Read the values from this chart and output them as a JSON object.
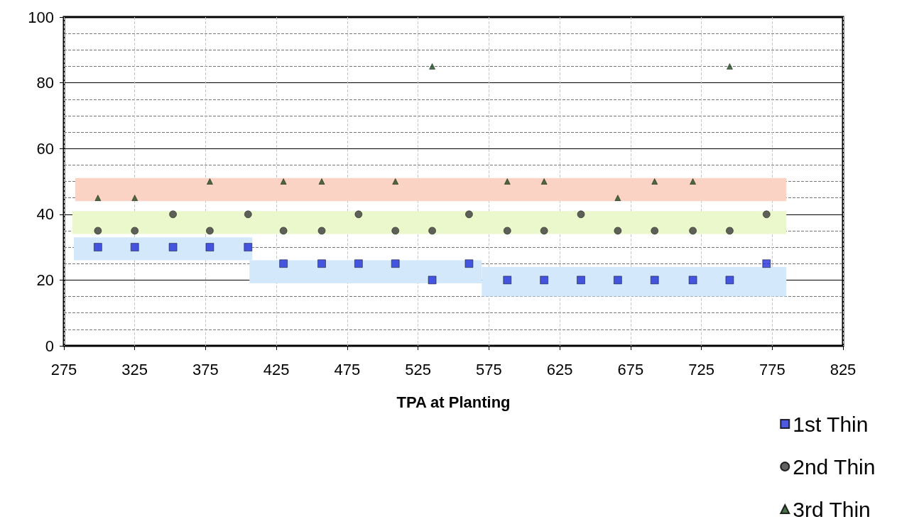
{
  "chart_data": {
    "type": "scatter",
    "xlabel": "TPA at Planting",
    "x": [
      299,
      325,
      352,
      378,
      405,
      430,
      457,
      483,
      509,
      535,
      561,
      588,
      614,
      640,
      666,
      692,
      719,
      745,
      771
    ],
    "series": [
      {
        "name": "1st Thin",
        "color": "#1f2fd8",
        "marker": "square",
        "values": [
          30,
          30,
          30,
          30,
          30,
          25,
          25,
          25,
          25,
          20,
          25,
          20,
          20,
          20,
          20,
          20,
          20,
          20,
          25
        ]
      },
      {
        "name": "2nd Thin",
        "color": "#3a3a3a",
        "marker": "circle",
        "values": [
          35,
          35,
          40,
          35,
          40,
          35,
          35,
          40,
          35,
          35,
          40,
          35,
          35,
          40,
          35,
          35,
          35,
          35,
          40
        ]
      },
      {
        "name": "3rd Thin",
        "color": "#1d4d1d",
        "marker": "triangle",
        "values": [
          45,
          45,
          null,
          50,
          null,
          50,
          50,
          null,
          50,
          85,
          null,
          50,
          50,
          null,
          45,
          50,
          50,
          85,
          null
        ]
      },
      {
        "type": "line",
        "color": "#fbd3c4",
        "x": [
          283,
          785
        ],
        "values": [
          null,
          null
        ],
        "lower": [
          44,
          44
        ],
        "upper": [
          51,
          51
        ]
      },
      {
        "type": "line",
        "color": "#eaf8cc",
        "x": [
          281,
          785
        ],
        "values": [
          null,
          null
        ],
        "lower": [
          34,
          34
        ],
        "upper": [
          41,
          41
        ]
      },
      {
        "type": "line",
        "color": "#d3e9fb",
        "x": [
          282,
          408
        ],
        "values": [
          null,
          null
        ],
        "lower": [
          26,
          26
        ],
        "upper": [
          33,
          33
        ]
      },
      {
        "type": "line",
        "color": "#d3e9fb",
        "x": [
          406,
          570
        ],
        "values": [
          null,
          null
        ],
        "lower": [
          19,
          19
        ],
        "upper": [
          26,
          26
        ]
      },
      {
        "type": "line",
        "color": "#d3e9fb",
        "x": [
          570,
          785
        ],
        "values": [
          null,
          null
        ],
        "lower": [
          15,
          15
        ],
        "upper": [
          24,
          24
        ]
      }
    ],
    "xlim": [
      275,
      825
    ],
    "xticks": [
      275,
      325,
      375,
      425,
      475,
      525,
      575,
      625,
      675,
      725,
      775,
      825
    ],
    "ylim": [
      0,
      100
    ],
    "yticks": [
      0,
      20,
      40,
      60,
      80,
      100
    ],
    "grid": true,
    "legend": "bottom right"
  }
}
